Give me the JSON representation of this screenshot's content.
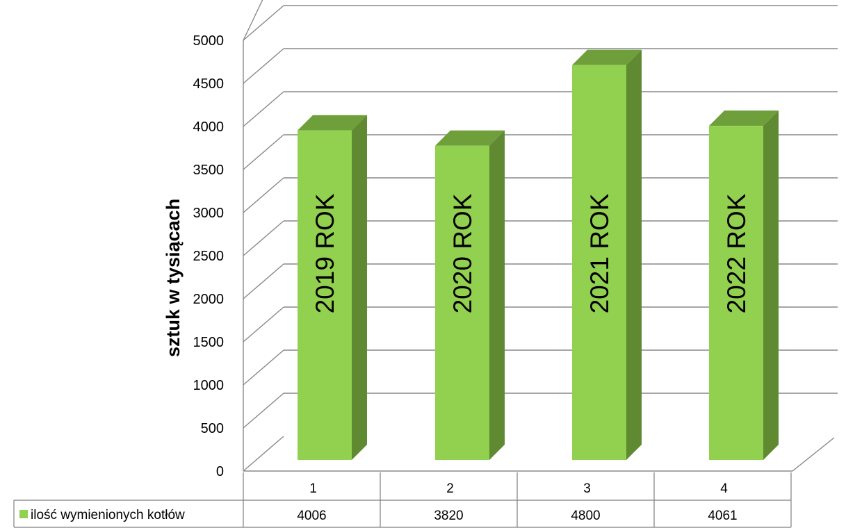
{
  "chart_data": {
    "type": "bar",
    "title": "",
    "xlabel": "",
    "ylabel": "sztuk w tysiącach",
    "ylim": [
      0,
      5000
    ],
    "yticks": [
      0,
      500,
      1000,
      1500,
      2000,
      2500,
      3000,
      3500,
      4000,
      4500,
      5000
    ],
    "categories": [
      "1",
      "2",
      "3",
      "4"
    ],
    "bar_labels": [
      "2019 ROK",
      "2020 ROK",
      "2021 ROK",
      "2022 ROK"
    ],
    "series": [
      {
        "name": "ilość wymienionych kotłów",
        "values": [
          4006,
          3820,
          4800,
          4061
        ]
      }
    ],
    "grid": true,
    "three_d": true,
    "legend": "data table, bottom",
    "colors": {
      "front": "#92d050",
      "top": "#6f9f3a",
      "side": "#5f8a31",
      "grid": "#898989"
    }
  }
}
